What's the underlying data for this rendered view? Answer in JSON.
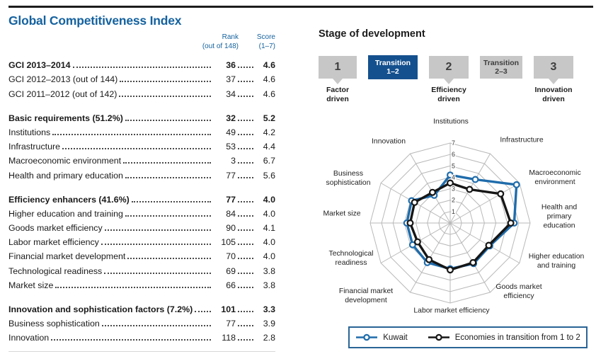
{
  "page": {
    "title": "Global Competitiveness Index",
    "accent_color": "#15629f"
  },
  "table": {
    "col_headers": {
      "rank_line1": "Rank",
      "rank_line2": "(out of 148)",
      "score_line1": "Score",
      "score_line2": "(1–7)"
    },
    "sections": [
      {
        "rows": [
          {
            "label": "GCI 2013–2014",
            "rank": "36",
            "score": "4.6",
            "bold": true
          },
          {
            "label": "GCI 2012–2013 (out of 144)",
            "rank": "37",
            "score": "4.6",
            "bold": false
          },
          {
            "label": "GCI 2011–2012 (out of 142)",
            "rank": "34",
            "score": "4.6",
            "bold": false
          }
        ]
      },
      {
        "rows": [
          {
            "label": "Basic requirements (51.2%)",
            "rank": "32",
            "score": "5.2",
            "bold": true
          },
          {
            "label": "Institutions",
            "rank": "49",
            "score": "4.2",
            "bold": false
          },
          {
            "label": "Infrastructure",
            "rank": "53",
            "score": "4.4",
            "bold": false
          },
          {
            "label": "Macroeconomic environment",
            "rank": "3",
            "score": "6.7",
            "bold": false
          },
          {
            "label": "Health and primary education",
            "rank": "77",
            "score": "5.6",
            "bold": false
          }
        ]
      },
      {
        "rows": [
          {
            "label": "Efficiency enhancers (41.6%)",
            "rank": "77",
            "score": "4.0",
            "bold": true
          },
          {
            "label": "Higher education and training",
            "rank": "84",
            "score": "4.0",
            "bold": false
          },
          {
            "label": "Goods market efficiency",
            "rank": "90",
            "score": "4.1",
            "bold": false
          },
          {
            "label": "Labor market efficiency",
            "rank": "105",
            "score": "4.0",
            "bold": false
          },
          {
            "label": "Financial market development",
            "rank": "70",
            "score": "4.0",
            "bold": false
          },
          {
            "label": "Technological readiness",
            "rank": "69",
            "score": "3.8",
            "bold": false
          },
          {
            "label": "Market size",
            "rank": "66",
            "score": "3.8",
            "bold": false
          }
        ]
      },
      {
        "rows": [
          {
            "label": "Innovation and sophistication factors (7.2%)",
            "rank": "101",
            "score": "3.3",
            "bold": true
          },
          {
            "label": "Business sophistication",
            "rank": "77",
            "score": "3.9",
            "bold": false
          },
          {
            "label": "Innovation",
            "rank": "118",
            "score": "2.8",
            "bold": false
          }
        ]
      }
    ]
  },
  "stage": {
    "title": "Stage of development",
    "active_color": "#14508e",
    "inactive_color": "#c7c7c7",
    "boxes": [
      {
        "lines": [
          "1"
        ],
        "type": "number",
        "active": false,
        "caption": [
          "Factor",
          "driven"
        ]
      },
      {
        "lines": [
          "Transition",
          "1–2"
        ],
        "type": "transition",
        "active": true,
        "caption": null
      },
      {
        "lines": [
          "2"
        ],
        "type": "number",
        "active": false,
        "caption": [
          "Efficiency",
          "driven"
        ]
      },
      {
        "lines": [
          "Transition",
          "2–3"
        ],
        "type": "transition",
        "active": false,
        "caption": null
      },
      {
        "lines": [
          "3"
        ],
        "type": "number",
        "active": false,
        "caption": [
          "Innovation",
          "driven"
        ]
      }
    ]
  },
  "chart_data": {
    "type": "radar",
    "title": "",
    "categories": [
      "Institutions",
      "Infrastructure",
      "Macroeconomic environment",
      "Health and primary education",
      "Higher education and training",
      "Goods market efficiency",
      "Labor market efficiency",
      "Financial market development",
      "Technological readiness",
      "Market size",
      "Business sophistication",
      "Innovation"
    ],
    "category_label_lines": [
      [
        "Institutions"
      ],
      [
        "Infrastructure"
      ],
      [
        "Macroeconomic",
        "environment"
      ],
      [
        "Health and",
        "primary",
        "education"
      ],
      [
        "Higher education",
        "and training"
      ],
      [
        "Goods market",
        "efficiency"
      ],
      [
        "Labor market efficiency"
      ],
      [
        "Financial market",
        "development"
      ],
      [
        "Technological",
        "readiness"
      ],
      [
        "Market size"
      ],
      [
        "Business",
        "sophistication"
      ],
      [
        "Innovation"
      ]
    ],
    "scale": {
      "min": 0,
      "max": 7,
      "ticks": [
        1,
        2,
        3,
        4,
        5,
        6,
        7
      ]
    },
    "grid": true,
    "legend_position": "bottom",
    "series": [
      {
        "name": "Kuwait",
        "color": "#1f6cab",
        "values": [
          4.2,
          4.4,
          6.7,
          5.6,
          4.0,
          4.1,
          4.0,
          4.0,
          3.8,
          3.8,
          3.9,
          2.8
        ]
      },
      {
        "name": "Economies in transition from 1 to 2",
        "color": "#161616",
        "values": [
          3.5,
          3.4,
          5.1,
          5.3,
          3.9,
          4.0,
          4.1,
          3.7,
          3.3,
          3.5,
          3.6,
          3.1
        ]
      }
    ]
  }
}
